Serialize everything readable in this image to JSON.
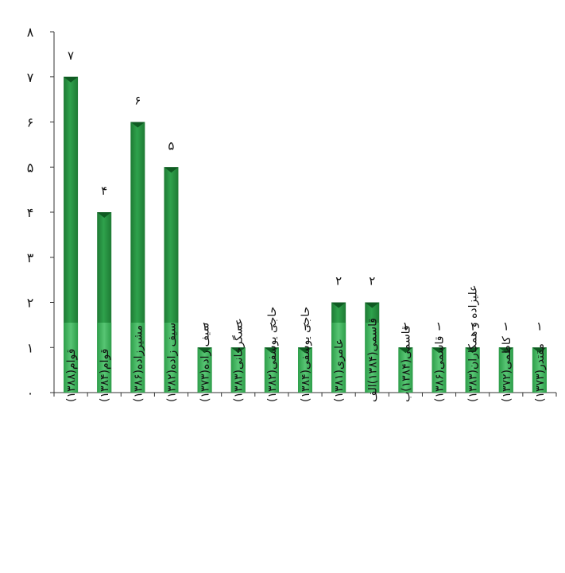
{
  "chart_data": {
    "type": "bar",
    "categories": [
      "قوام(۱۳۸۸)",
      "قوام(۱۳۸۴)",
      "مشیرزاده(۱۳۸۶)",
      "سیف زاده(۱۳۸۲)",
      "سیف زاده(۱۳۷۳)",
      "عسگرخانی(۱۳۸۳)",
      "حاجی یوسفی(۱۳۸۲)",
      "حاجی یوسفی(۱۳۸۴)",
      "عامری(۱۳۸۱)",
      "قاسمی(۱۳۸۴)الف",
      "قاسمی(۱۳۸۴)ب",
      "قاسمی(۱۳۸۶)",
      "علیزاده و همکاران(۱۳۸۳)",
      "کاظمی(۱۳۷۲)",
      "مقتدر(۱۳۷۳)"
    ],
    "values": [
      7,
      4,
      6,
      5,
      1,
      1,
      1,
      1,
      2,
      2,
      1,
      1,
      1,
      1,
      1
    ],
    "value_labels": [
      "۷",
      "۴",
      "۶",
      "۵",
      "۱",
      "۱",
      "۱",
      "۱",
      "۲",
      "۲",
      "۱",
      "۱",
      "۱",
      "۱",
      "۱"
    ],
    "y_tick_values": [
      0,
      1,
      2,
      3,
      4,
      5,
      6,
      7,
      8
    ],
    "y_tick_labels": [
      "۰",
      "۱",
      "۲",
      "۳",
      "۴",
      "۵",
      "۶",
      "۷",
      "۸"
    ],
    "ylim": [
      0,
      8
    ],
    "title": "",
    "xlabel": "",
    "ylabel": "",
    "grid": false,
    "legend": "none",
    "colors": {
      "bar_dark": "#1e7a34",
      "bar_mid": "#2fa24c",
      "bar_light": "#5cc978",
      "bar_top": "#0f5a22",
      "axis": "#333333"
    }
  }
}
